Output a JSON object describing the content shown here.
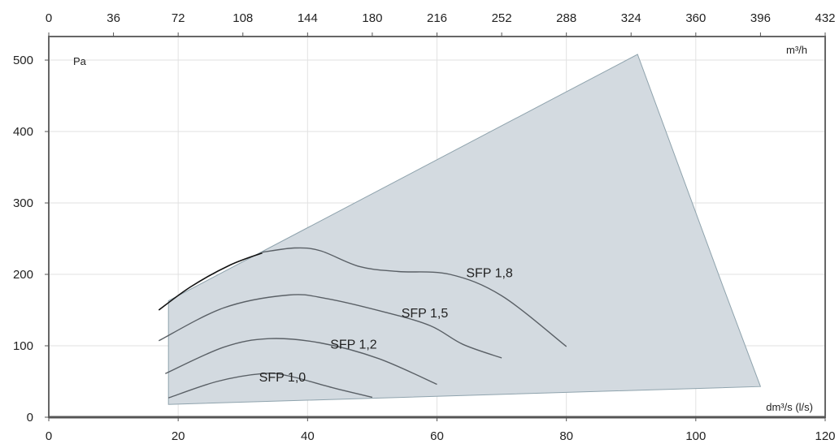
{
  "chart_data": {
    "type": "line",
    "x_primary": {
      "unit": "dm³/s (l/s)",
      "range": [
        0,
        120
      ],
      "ticks": [
        0,
        20,
        40,
        60,
        80,
        100,
        120
      ]
    },
    "x_secondary": {
      "unit": "m³/h",
      "range": [
        0,
        432
      ],
      "ticks": [
        0,
        36,
        72,
        108,
        144,
        180,
        216,
        252,
        288,
        324,
        360,
        396,
        432
      ]
    },
    "y": {
      "unit": "Pa",
      "range": [
        0,
        500
      ],
      "ticks": [
        0,
        100,
        200,
        300,
        400,
        500
      ],
      "display_max": 533
    },
    "grid": true,
    "operating_area": {
      "color": "#d3dae0",
      "points": [
        [
          18.5,
          18
        ],
        [
          18.5,
          163
        ],
        [
          91,
          508
        ],
        [
          104,
          188
        ],
        [
          110,
          43
        ]
      ]
    },
    "series": [
      {
        "name": "SFP 1,0",
        "color": "#5a6066",
        "points": [
          [
            18.5,
            27
          ],
          [
            26,
            50
          ],
          [
            33,
            61
          ],
          [
            37,
            58
          ],
          [
            44,
            41
          ],
          [
            50,
            28
          ]
        ],
        "label_at": [
          32.5,
          50
        ]
      },
      {
        "name": "SFP 1,2",
        "color": "#5a6066",
        "points": [
          [
            18,
            61
          ],
          [
            27,
            98
          ],
          [
            34,
            110
          ],
          [
            42,
            104
          ],
          [
            51,
            82
          ],
          [
            60,
            46
          ]
        ],
        "label_at": [
          43.5,
          96
        ]
      },
      {
        "name": "SFP 1,5",
        "color": "#5a6066",
        "points": [
          [
            17,
            107
          ],
          [
            27,
            153
          ],
          [
            37,
            171
          ],
          [
            43,
            166
          ],
          [
            52,
            147
          ],
          [
            59,
            128
          ],
          [
            64,
            102
          ],
          [
            70,
            83
          ]
        ],
        "label_at": [
          54.5,
          140
        ]
      },
      {
        "name": "SFP 1,8",
        "color": "#5a6066",
        "points": [
          [
            33,
            231
          ],
          [
            38,
            237
          ],
          [
            42,
            233
          ],
          [
            48,
            211
          ],
          [
            54,
            204
          ],
          [
            62,
            200
          ],
          [
            70,
            170
          ],
          [
            80,
            99
          ]
        ],
        "label_at": [
          64.5,
          196
        ]
      },
      {
        "name": "",
        "color": "#111111",
        "points": [
          [
            17,
            150
          ],
          [
            22,
            183
          ],
          [
            28,
            213
          ],
          [
            33,
            230
          ]
        ]
      }
    ]
  }
}
